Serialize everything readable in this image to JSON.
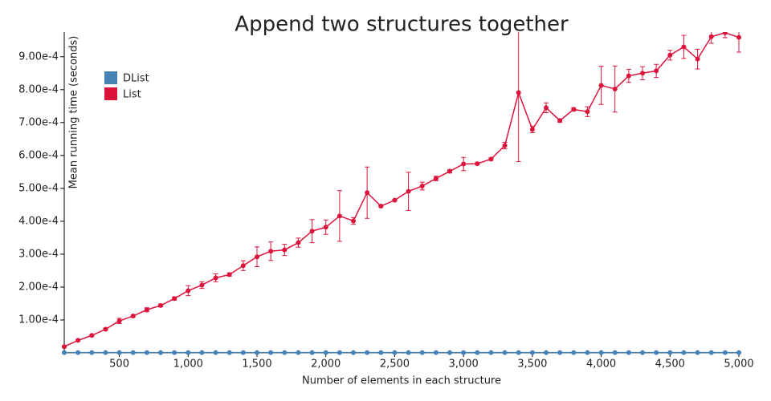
{
  "chart_data": {
    "type": "line",
    "title": "Append two structures together",
    "x_label": "Number of elements in each structure",
    "y_label": "Mean running time (seconds)",
    "x": [
      100,
      200,
      300,
      400,
      500,
      600,
      700,
      800,
      900,
      1000,
      1100,
      1200,
      1300,
      1400,
      1500,
      1600,
      1700,
      1800,
      1900,
      2000,
      2100,
      2200,
      2300,
      2400,
      2500,
      2600,
      2700,
      2800,
      2900,
      3000,
      3100,
      3200,
      3300,
      3400,
      3500,
      3600,
      3700,
      3800,
      3900,
      4000,
      4100,
      4200,
      4300,
      4400,
      4500,
      4600,
      4700,
      4800,
      4900,
      5000
    ],
    "series": [
      {
        "name": "DList",
        "color": "#4682b4",
        "values": [
          1e-06,
          1e-06,
          1e-06,
          1e-06,
          1e-06,
          1e-06,
          1e-06,
          1e-06,
          1e-06,
          1e-06,
          1e-06,
          1e-06,
          1e-06,
          1e-06,
          1e-06,
          1e-06,
          1e-06,
          1e-06,
          1e-06,
          1e-06,
          1e-06,
          1e-06,
          1e-06,
          1e-06,
          1e-06,
          1e-06,
          1e-06,
          1e-06,
          1e-06,
          1e-06,
          1e-06,
          1e-06,
          1e-06,
          1e-06,
          1e-06,
          1e-06,
          1e-06,
          1e-06,
          1e-06,
          1e-06,
          1e-06,
          1e-06,
          1e-06,
          1e-06,
          1e-06,
          1e-06,
          1e-06,
          1e-06,
          1e-06,
          1e-06
        ]
      },
      {
        "name": "List",
        "color": "#dc143c",
        "values": [
          1.9e-05,
          3.8e-05,
          5.3e-05,
          7.2e-05,
          9.7e-05,
          0.000112,
          0.000131,
          0.000144,
          0.000165,
          0.000189,
          0.000206,
          0.000228,
          0.000238,
          0.000265,
          0.000292,
          0.000309,
          0.000313,
          0.000335,
          0.00037,
          0.000382,
          0.000416,
          0.000401,
          0.000487,
          0.000446,
          0.000464,
          0.000491,
          0.000507,
          0.00053,
          0.000552,
          0.000574,
          0.000575,
          0.000589,
          0.00063,
          0.000791,
          0.000679,
          0.000745,
          0.000706,
          0.00074,
          0.000733,
          0.000813,
          0.000802,
          0.000842,
          0.00085,
          0.000857,
          0.000905,
          0.00093,
          0.000893,
          0.000961,
          0.000973,
          0.000959
        ],
        "errors": [
          2e-06,
          2e-06,
          2e-06,
          3e-06,
          8e-06,
          3e-06,
          6e-06,
          4e-06,
          5e-06,
          1.5e-05,
          1e-05,
          1.2e-05,
          5e-06,
          1.5e-05,
          3e-05,
          2.8e-05,
          1.7e-05,
          1.4e-05,
          3.5e-05,
          2.2e-05,
          7.7e-05,
          1e-05,
          7.8e-05,
          3e-06,
          3e-06,
          5.8e-05,
          1.2e-05,
          7e-06,
          5e-06,
          2e-05,
          3e-06,
          4e-06,
          1e-05,
          0.00021,
          1e-05,
          1.5e-05,
          5e-06,
          5e-06,
          1.5e-05,
          5.8e-05,
          7e-05,
          2e-05,
          2e-05,
          2e-05,
          1.5e-05,
          3.5e-05,
          3e-05,
          2e-05,
          1.5e-05,
          4.5e-05
        ]
      }
    ],
    "xlim": [
      100,
      5000
    ],
    "xticks": [
      500,
      {
        "value": 1000,
        "label": "1,000"
      },
      {
        "value": 1500,
        "label": "1,500"
      },
      {
        "value": 2000,
        "label": "2,000"
      },
      {
        "value": 2500,
        "label": "2,500"
      },
      {
        "value": 3000,
        "label": "3,000"
      },
      {
        "value": 3500,
        "label": "3,500"
      },
      {
        "value": 4000,
        "label": "4,000"
      },
      {
        "value": 4500,
        "label": "4,500"
      },
      {
        "value": 5000,
        "label": "5,000"
      }
    ],
    "ylim": [
      0,
      0.000975
    ],
    "yticks": [
      {
        "value": 0.0001,
        "label": "1.00e-4"
      },
      {
        "value": 0.0002,
        "label": "2.00e-4"
      },
      {
        "value": 0.0003,
        "label": "3.00e-4"
      },
      {
        "value": 0.0004,
        "label": "4.00e-4"
      },
      {
        "value": 0.0005,
        "label": "5.00e-4"
      },
      {
        "value": 0.0006,
        "label": "6.00e-4"
      },
      {
        "value": 0.0007,
        "label": "7.00e-4"
      },
      {
        "value": 0.0008,
        "label": "8.00e-4"
      },
      {
        "value": 0.0009,
        "label": "9.00e-4"
      }
    ],
    "legend": "top-left"
  }
}
